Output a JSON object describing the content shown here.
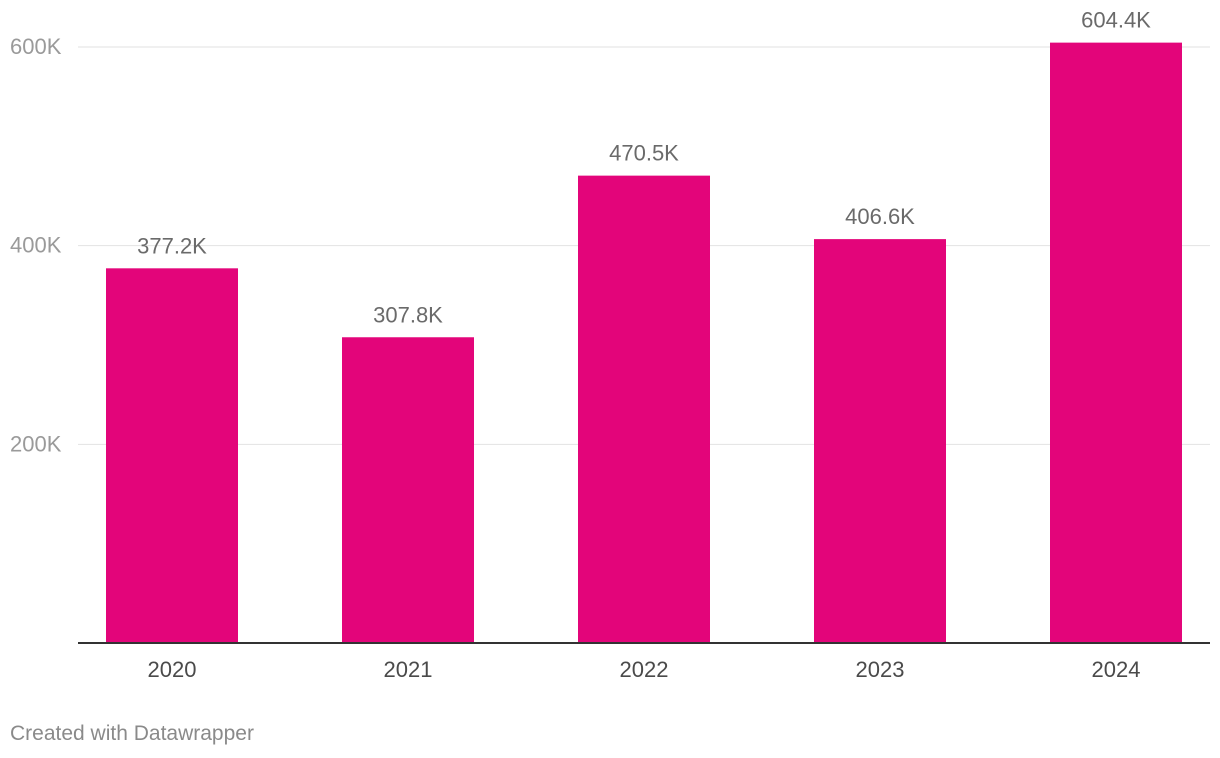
{
  "chart_data": {
    "type": "bar",
    "categories": [
      "2020",
      "2021",
      "2022",
      "2023",
      "2024"
    ],
    "values": [
      377200,
      307800,
      470500,
      406600,
      604400
    ],
    "value_labels": [
      "377.2K",
      "307.8K",
      "470.5K",
      "406.6K",
      "604.4K"
    ],
    "title": "",
    "xlabel": "",
    "ylabel": "",
    "ylim": [
      0,
      600000
    ],
    "yticks": [
      {
        "value": 200000,
        "label": "200K"
      },
      {
        "value": 400000,
        "label": "400K"
      },
      {
        "value": 600000,
        "label": "600K"
      }
    ],
    "grid": true,
    "legend": "none",
    "bar_color": "#e3057a"
  },
  "footer": {
    "credit": "Created with Datawrapper"
  },
  "colors": {
    "bar": "#e3057a",
    "gridline": "#e2e2e2",
    "baseline": "#333333",
    "tick_label": "#9a9a9a",
    "category_label": "#4a4a4a",
    "value_label": "#6a6a6a"
  }
}
